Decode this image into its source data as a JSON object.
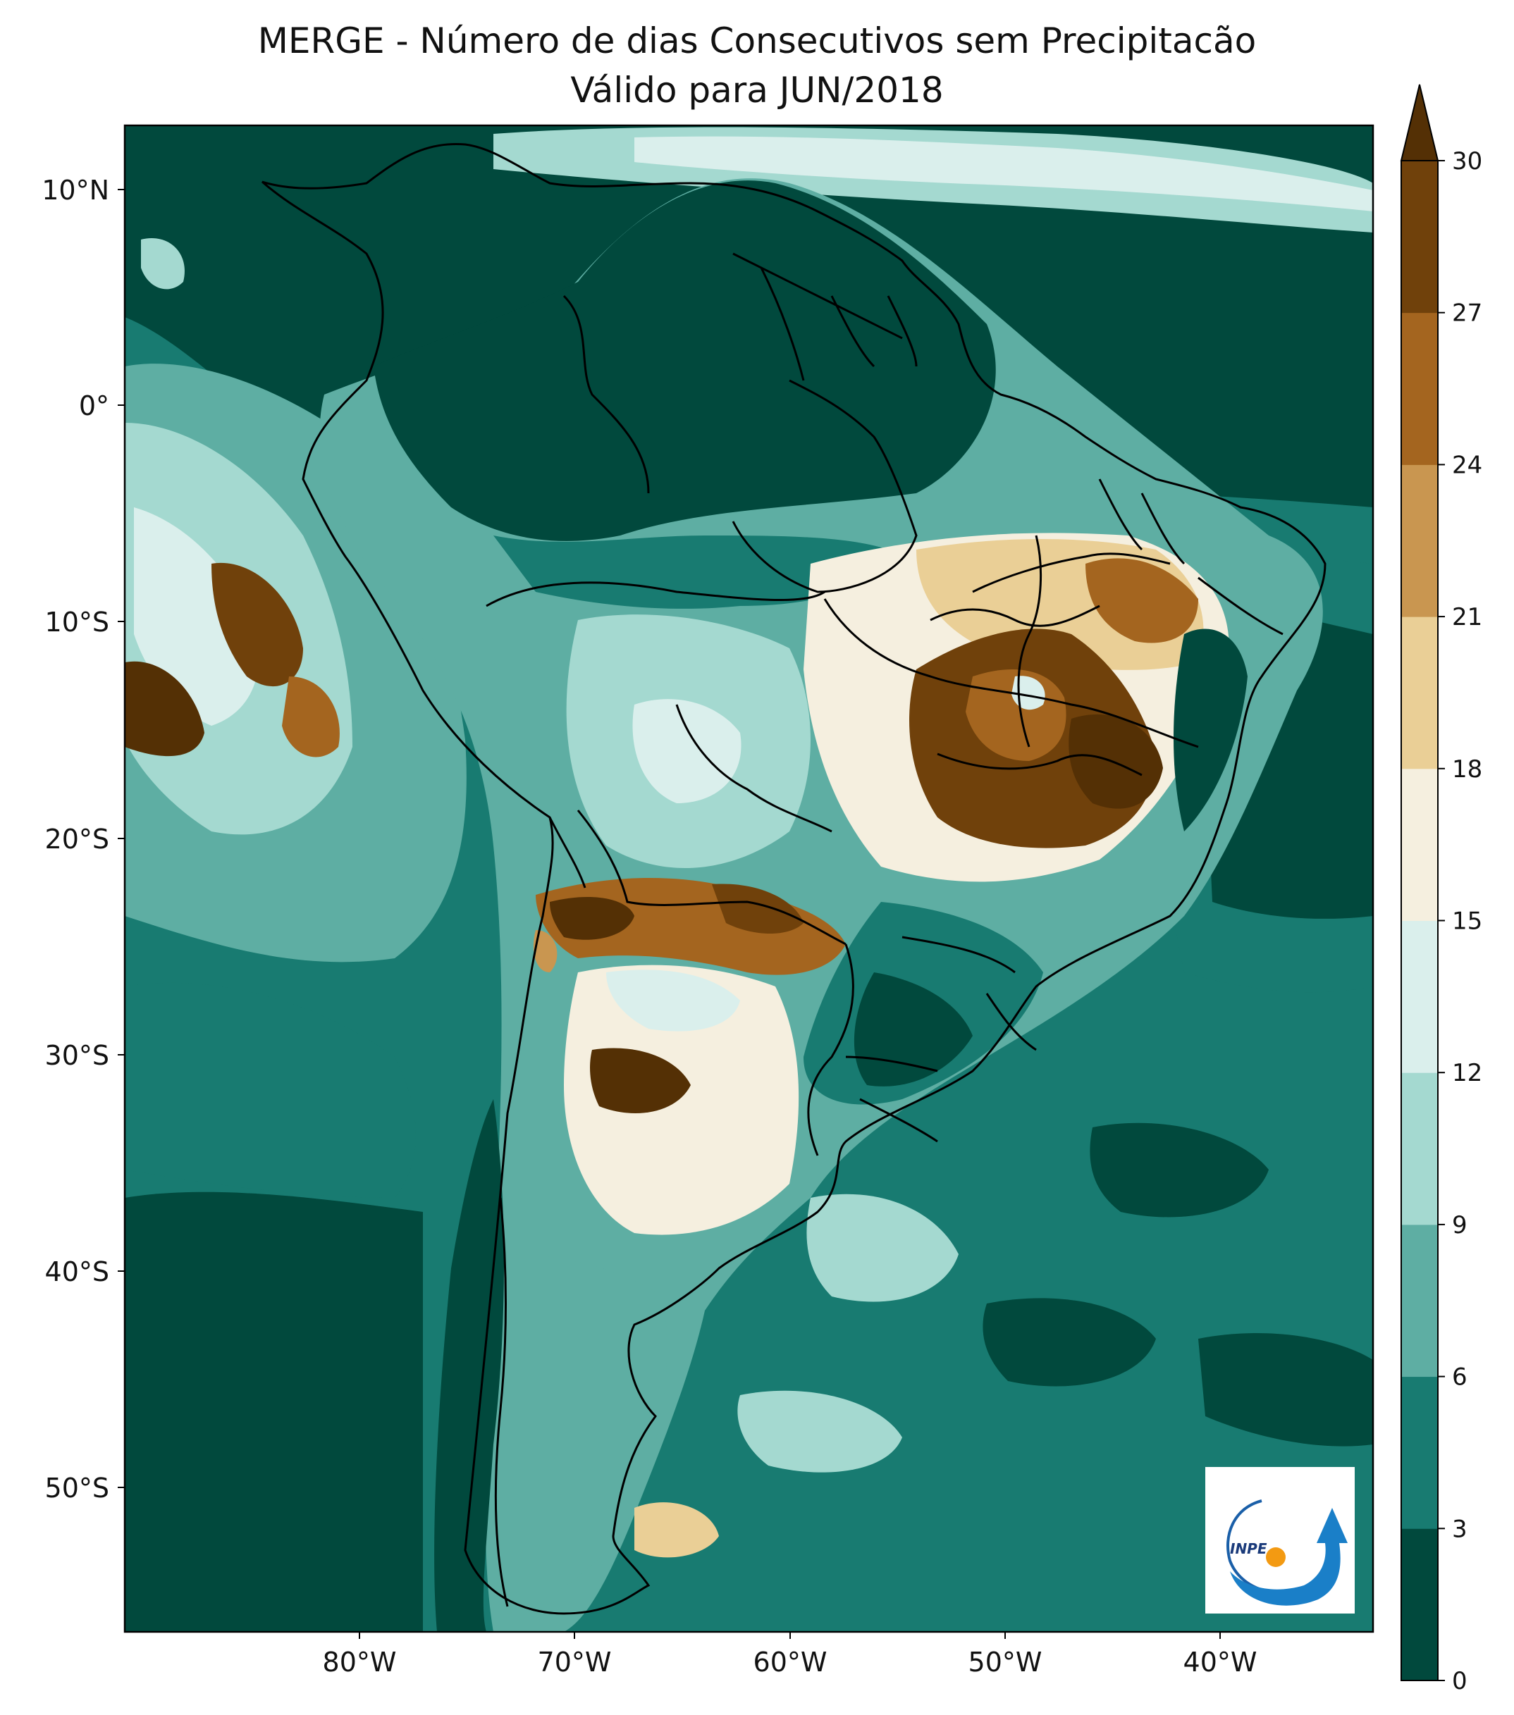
{
  "title": {
    "line1": "MERGE - Número de dias Consecutivos sem Precipitacão",
    "line2": "Válido para JUN/2018"
  },
  "lat_ticks": [
    "10°N",
    "0°",
    "10°S",
    "20°S",
    "30°S",
    "40°S",
    "50°S"
  ],
  "lon_ticks": [
    "80°W",
    "70°W",
    "60°W",
    "50°W",
    "40°W"
  ],
  "colorbar": {
    "ticks": [
      "0",
      "3",
      "6",
      "9",
      "12",
      "15",
      "18",
      "21",
      "24",
      "27",
      "30"
    ],
    "colors": [
      "#01493d",
      "#187b71",
      "#5eaea3",
      "#a4d9d0",
      "#daefec",
      "#f5efdf",
      "#eacf96",
      "#c99650",
      "#a4651f",
      "#70410b",
      "#543005"
    ]
  },
  "logo": {
    "text": "INPE"
  }
}
